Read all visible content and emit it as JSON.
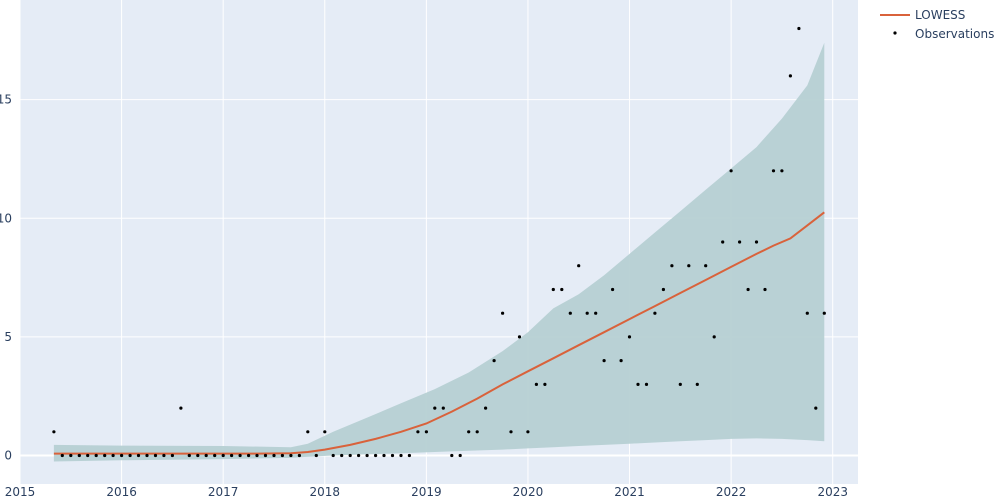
{
  "chart_data": {
    "type": "scatter",
    "title": "",
    "xlabel": "",
    "ylabel": "",
    "x_ticks": [
      "2015",
      "2016",
      "2017",
      "2018",
      "2019",
      "2020",
      "2021",
      "2022",
      "2023"
    ],
    "y_ticks": [
      "0",
      "5",
      "10",
      "15"
    ],
    "xlim": [
      "2015-01-01",
      "2023-03-31"
    ],
    "ylim": [
      -1.2,
      19.2
    ],
    "grid": true,
    "legend_position": "top-right",
    "background_color": "#e5ecf6",
    "series": [
      {
        "name": "LOWESS",
        "kind": "line",
        "color": "#d9623b",
        "x": [
          "2015-05-01",
          "2015-09-01",
          "2016-01-01",
          "2016-05-01",
          "2016-09-01",
          "2017-01-01",
          "2017-05-01",
          "2017-09-01",
          "2017-11-01",
          "2018-01-01",
          "2018-04-01",
          "2018-07-01",
          "2018-10-01",
          "2019-01-01",
          "2019-04-01",
          "2019-07-01",
          "2019-10-01",
          "2020-01-01",
          "2020-04-01",
          "2020-07-01",
          "2020-10-01",
          "2021-01-01",
          "2021-04-01",
          "2021-07-01",
          "2021-10-01",
          "2022-01-01",
          "2022-04-01",
          "2022-06-01",
          "2022-08-01",
          "2022-10-01",
          "2022-12-01"
        ],
        "y": [
          0.08,
          0.08,
          0.08,
          0.08,
          0.08,
          0.08,
          0.08,
          0.1,
          0.15,
          0.25,
          0.45,
          0.7,
          1.0,
          1.35,
          1.85,
          2.4,
          3.0,
          3.55,
          4.1,
          4.65,
          5.2,
          5.75,
          6.3,
          6.85,
          7.4,
          7.95,
          8.5,
          8.85,
          9.15,
          9.7,
          10.25
        ]
      },
      {
        "name": "",
        "kind": "band",
        "color": "#b6d0d3",
        "x": [
          "2015-05-01",
          "2016-01-01",
          "2017-01-01",
          "2017-09-01",
          "2017-11-01",
          "2018-02-01",
          "2018-06-01",
          "2018-10-01",
          "2019-02-01",
          "2019-06-01",
          "2019-10-01",
          "2020-01-01",
          "2020-04-01",
          "2020-07-01",
          "2020-10-01",
          "2021-01-01",
          "2021-04-01",
          "2021-07-01",
          "2021-10-01",
          "2022-01-01",
          "2022-04-01",
          "2022-07-01",
          "2022-10-01",
          "2022-12-01"
        ],
        "upper": [
          0.45,
          0.42,
          0.4,
          0.35,
          0.5,
          1.0,
          1.6,
          2.2,
          2.8,
          3.5,
          4.4,
          5.2,
          6.2,
          6.8,
          7.6,
          8.5,
          9.4,
          10.3,
          11.2,
          12.1,
          13.0,
          14.2,
          15.6,
          17.4
        ],
        "lower": [
          -0.25,
          -0.2,
          -0.15,
          -0.1,
          -0.05,
          0.0,
          0.05,
          0.1,
          0.15,
          0.2,
          0.25,
          0.3,
          0.35,
          0.4,
          0.45,
          0.5,
          0.55,
          0.6,
          0.65,
          0.7,
          0.72,
          0.7,
          0.65,
          0.6
        ]
      },
      {
        "name": "Observations",
        "kind": "markers",
        "color": "#000000",
        "points": [
          [
            "2015-05-01",
            1
          ],
          [
            "2015-06-01",
            0
          ],
          [
            "2015-07-01",
            0
          ],
          [
            "2015-08-01",
            0
          ],
          [
            "2015-09-01",
            0
          ],
          [
            "2015-10-01",
            0
          ],
          [
            "2015-11-01",
            0
          ],
          [
            "2015-12-01",
            0
          ],
          [
            "2016-01-01",
            0
          ],
          [
            "2016-02-01",
            0
          ],
          [
            "2016-03-01",
            0
          ],
          [
            "2016-04-01",
            0
          ],
          [
            "2016-05-01",
            0
          ],
          [
            "2016-06-01",
            0
          ],
          [
            "2016-07-01",
            0
          ],
          [
            "2016-08-01",
            2
          ],
          [
            "2016-09-01",
            0
          ],
          [
            "2016-10-01",
            0
          ],
          [
            "2016-11-01",
            0
          ],
          [
            "2016-12-01",
            0
          ],
          [
            "2017-01-01",
            0
          ],
          [
            "2017-02-01",
            0
          ],
          [
            "2017-03-01",
            0
          ],
          [
            "2017-04-01",
            0
          ],
          [
            "2017-05-01",
            0
          ],
          [
            "2017-06-01",
            0
          ],
          [
            "2017-07-01",
            0
          ],
          [
            "2017-08-01",
            0
          ],
          [
            "2017-09-01",
            0
          ],
          [
            "2017-10-01",
            0
          ],
          [
            "2017-11-01",
            1
          ],
          [
            "2017-12-01",
            0
          ],
          [
            "2018-01-01",
            1
          ],
          [
            "2018-02-01",
            0
          ],
          [
            "2018-03-01",
            0
          ],
          [
            "2018-04-01",
            0
          ],
          [
            "2018-05-01",
            0
          ],
          [
            "2018-06-01",
            0
          ],
          [
            "2018-07-01",
            0
          ],
          [
            "2018-08-01",
            0
          ],
          [
            "2018-09-01",
            0
          ],
          [
            "2018-10-01",
            0
          ],
          [
            "2018-11-01",
            0
          ],
          [
            "2018-12-01",
            1
          ],
          [
            "2019-01-01",
            1
          ],
          [
            "2019-02-01",
            2
          ],
          [
            "2019-03-01",
            2
          ],
          [
            "2019-04-01",
            0
          ],
          [
            "2019-05-01",
            0
          ],
          [
            "2019-06-01",
            1
          ],
          [
            "2019-07-01",
            1
          ],
          [
            "2019-08-01",
            2
          ],
          [
            "2019-09-01",
            4
          ],
          [
            "2019-10-01",
            6
          ],
          [
            "2019-11-01",
            1
          ],
          [
            "2019-12-01",
            5
          ],
          [
            "2020-01-01",
            1
          ],
          [
            "2020-02-01",
            3
          ],
          [
            "2020-03-01",
            3
          ],
          [
            "2020-04-01",
            7
          ],
          [
            "2020-05-01",
            7
          ],
          [
            "2020-06-01",
            6
          ],
          [
            "2020-07-01",
            8
          ],
          [
            "2020-08-01",
            6
          ],
          [
            "2020-09-01",
            6
          ],
          [
            "2020-10-01",
            4
          ],
          [
            "2020-11-01",
            7
          ],
          [
            "2020-12-01",
            4
          ],
          [
            "2021-01-01",
            5
          ],
          [
            "2021-02-01",
            3
          ],
          [
            "2021-03-01",
            3
          ],
          [
            "2021-04-01",
            6
          ],
          [
            "2021-05-01",
            7
          ],
          [
            "2021-06-01",
            8
          ],
          [
            "2021-07-01",
            3
          ],
          [
            "2021-08-01",
            8
          ],
          [
            "2021-09-01",
            3
          ],
          [
            "2021-10-01",
            8
          ],
          [
            "2021-11-01",
            5
          ],
          [
            "2021-12-01",
            9
          ],
          [
            "2022-01-01",
            12
          ],
          [
            "2022-02-01",
            9
          ],
          [
            "2022-03-01",
            7
          ],
          [
            "2022-04-01",
            9
          ],
          [
            "2022-05-01",
            7
          ],
          [
            "2022-06-01",
            12
          ],
          [
            "2022-07-01",
            12
          ],
          [
            "2022-08-01",
            16
          ],
          [
            "2022-09-01",
            18
          ],
          [
            "2022-10-01",
            6
          ],
          [
            "2022-11-01",
            2
          ],
          [
            "2022-12-01",
            6
          ]
        ]
      }
    ]
  }
}
